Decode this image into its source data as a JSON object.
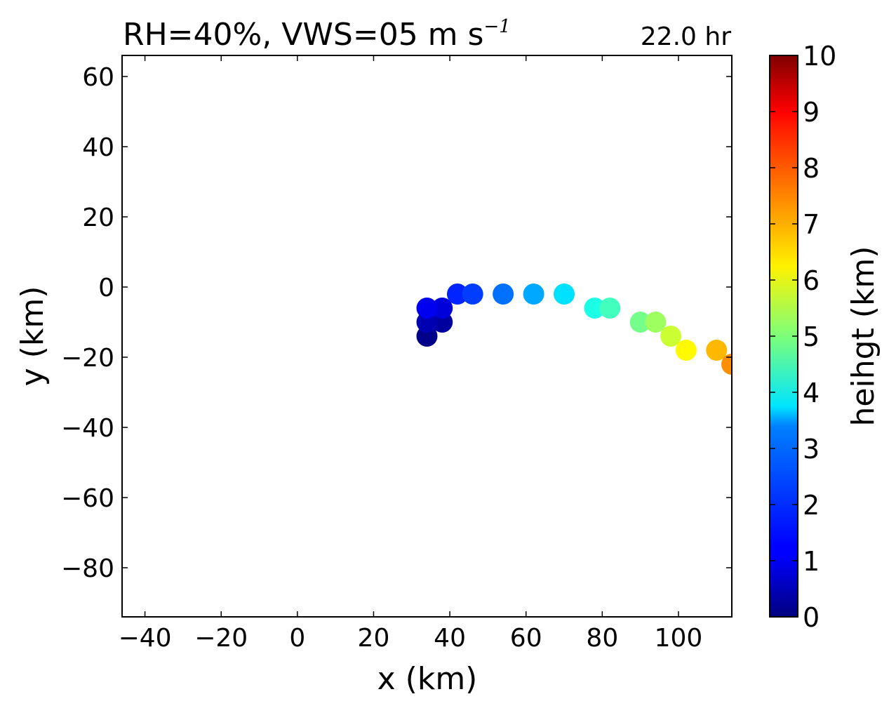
{
  "chart_data": {
    "type": "scatter",
    "title_left": "RH=40%, VWS=05 m s",
    "title_superscript": "−1",
    "title_right": "22.0 hr",
    "title_right_color": "#0000ff",
    "xlabel": "x (km)",
    "ylabel": "y (km)",
    "xlim": [
      -46,
      114
    ],
    "ylim": [
      -94,
      66
    ],
    "xticks": [
      -40,
      -20,
      0,
      20,
      40,
      60,
      80,
      100
    ],
    "xtick_labels": [
      "−40",
      "−20",
      "0",
      "20",
      "40",
      "60",
      "80",
      "100"
    ],
    "yticks": [
      -80,
      -60,
      -40,
      -20,
      0,
      20,
      40,
      60
    ],
    "ytick_labels": [
      "−80",
      "−60",
      "−40",
      "−20",
      "0",
      "20",
      "40",
      "60"
    ],
    "grid": false,
    "colorbar": {
      "label": "heihgt (km)",
      "range": [
        0,
        10
      ],
      "colormap": "jet",
      "ticks": [
        0,
        1,
        2,
        3,
        4,
        5,
        6,
        7,
        8,
        9,
        10
      ],
      "tick_labels": [
        "0",
        "1",
        "2",
        "3",
        "4",
        "5",
        "6",
        "7",
        "8",
        "9",
        "10"
      ]
    },
    "points": [
      {
        "x": 34,
        "y": -14,
        "height": 0.1
      },
      {
        "x": 38,
        "y": -10,
        "height": 0.3
      },
      {
        "x": 34,
        "y": -10,
        "height": 0.5
      },
      {
        "x": 38,
        "y": -6,
        "height": 0.9
      },
      {
        "x": 34,
        "y": -6,
        "height": 1.1
      },
      {
        "x": 42,
        "y": -2,
        "height": 1.6
      },
      {
        "x": 46,
        "y": -2,
        "height": 1.85
      },
      {
        "x": 54,
        "y": -2,
        "height": 2.35
      },
      {
        "x": 62,
        "y": -2,
        "height": 2.9
      },
      {
        "x": 70,
        "y": -2,
        "height": 3.45
      },
      {
        "x": 78,
        "y": -6,
        "height": 4.0
      },
      {
        "x": 82,
        "y": -6,
        "height": 4.4
      },
      {
        "x": 90,
        "y": -10,
        "height": 4.9
      },
      {
        "x": 94,
        "y": -10,
        "height": 5.3
      },
      {
        "x": 98,
        "y": -14,
        "height": 5.75
      },
      {
        "x": 102,
        "y": -18,
        "height": 6.3
      },
      {
        "x": 110,
        "y": -18,
        "height": 6.95
      },
      {
        "x": 114,
        "y": -22,
        "height": 7.35
      }
    ]
  }
}
